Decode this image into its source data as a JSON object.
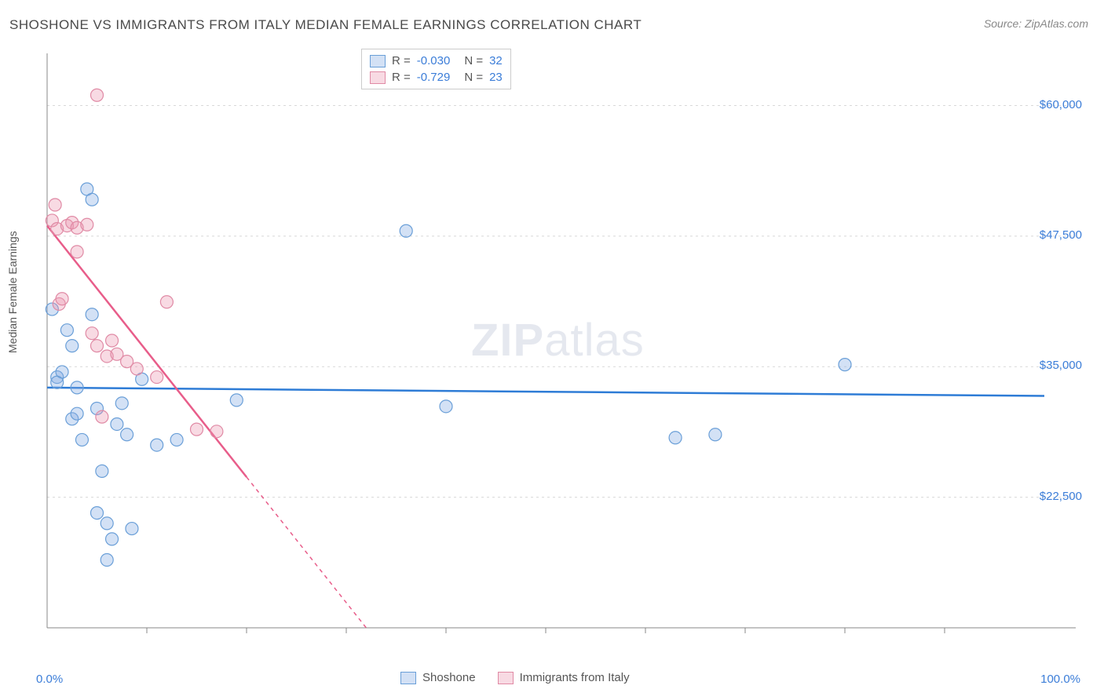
{
  "title": "SHOSHONE VS IMMIGRANTS FROM ITALY MEDIAN FEMALE EARNINGS CORRELATION CHART",
  "source": "Source: ZipAtlas.com",
  "watermark_zip": "ZIP",
  "watermark_atlas": "atlas",
  "y_axis_label": "Median Female Earnings",
  "chart": {
    "type": "scatter",
    "xlim": [
      0,
      100
    ],
    "ylim": [
      10000,
      65000
    ],
    "y_ticks": [
      22500,
      35000,
      47500,
      60000
    ],
    "y_tick_labels": [
      "$22,500",
      "$35,000",
      "$47,500",
      "$60,000"
    ],
    "x_tick_labels": {
      "left": "0.0%",
      "right": "100.0%"
    },
    "x_minor_ticks": [
      10,
      20,
      30,
      40,
      50,
      60,
      70,
      80,
      90
    ],
    "grid_color": "#d8d8d8",
    "axis_color": "#888888",
    "background_color": "#ffffff",
    "series": [
      {
        "name": "Shoshone",
        "R": "-0.030",
        "N": "32",
        "fill": "rgba(130,170,225,0.35)",
        "stroke": "#6a9fd8",
        "trend_color": "#2e7cd6",
        "trend": {
          "x1": 0,
          "y1": 33000,
          "x2": 100,
          "y2": 32200
        },
        "points": [
          {
            "x": 0.5,
            "y": 40500
          },
          {
            "x": 1.0,
            "y": 34000
          },
          {
            "x": 1.0,
            "y": 33500
          },
          {
            "x": 1.5,
            "y": 34500
          },
          {
            "x": 2.0,
            "y": 38500
          },
          {
            "x": 2.5,
            "y": 37000
          },
          {
            "x": 2.5,
            "y": 30000
          },
          {
            "x": 3.0,
            "y": 33000
          },
          {
            "x": 3.0,
            "y": 30500
          },
          {
            "x": 3.5,
            "y": 28000
          },
          {
            "x": 4.0,
            "y": 52000
          },
          {
            "x": 4.5,
            "y": 51000
          },
          {
            "x": 4.5,
            "y": 40000
          },
          {
            "x": 5.0,
            "y": 31000
          },
          {
            "x": 5.0,
            "y": 21000
          },
          {
            "x": 5.5,
            "y": 25000
          },
          {
            "x": 6.0,
            "y": 20000
          },
          {
            "x": 6.0,
            "y": 16500
          },
          {
            "x": 6.5,
            "y": 18500
          },
          {
            "x": 7.0,
            "y": 29500
          },
          {
            "x": 7.5,
            "y": 31500
          },
          {
            "x": 8.0,
            "y": 28500
          },
          {
            "x": 8.5,
            "y": 19500
          },
          {
            "x": 9.5,
            "y": 33800
          },
          {
            "x": 11.0,
            "y": 27500
          },
          {
            "x": 13.0,
            "y": 28000
          },
          {
            "x": 19.0,
            "y": 31800
          },
          {
            "x": 36.0,
            "y": 48000
          },
          {
            "x": 40.0,
            "y": 31200
          },
          {
            "x": 63.0,
            "y": 28200
          },
          {
            "x": 67.0,
            "y": 28500
          },
          {
            "x": 80.0,
            "y": 35200
          }
        ]
      },
      {
        "name": "Immigrants from Italy",
        "R": "-0.729",
        "N": "23",
        "fill": "rgba(235,150,175,0.35)",
        "stroke": "#e08aa5",
        "trend_color": "#e85d8a",
        "trend": {
          "x1": 0,
          "y1": 48500,
          "x2": 32,
          "y2": 10000
        },
        "trend_dash_from_x": 20,
        "points": [
          {
            "x": 0.5,
            "y": 49000
          },
          {
            "x": 0.8,
            "y": 50500
          },
          {
            "x": 1.0,
            "y": 48200
          },
          {
            "x": 1.2,
            "y": 41000
          },
          {
            "x": 1.5,
            "y": 41500
          },
          {
            "x": 2.0,
            "y": 48500
          },
          {
            "x": 2.5,
            "y": 48800
          },
          {
            "x": 3.0,
            "y": 48300
          },
          {
            "x": 3.0,
            "y": 46000
          },
          {
            "x": 4.0,
            "y": 48600
          },
          {
            "x": 4.5,
            "y": 38200
          },
          {
            "x": 5.0,
            "y": 37000
          },
          {
            "x": 5.0,
            "y": 61000
          },
          {
            "x": 5.5,
            "y": 30200
          },
          {
            "x": 6.0,
            "y": 36000
          },
          {
            "x": 6.5,
            "y": 37500
          },
          {
            "x": 7.0,
            "y": 36200
          },
          {
            "x": 8.0,
            "y": 35500
          },
          {
            "x": 9.0,
            "y": 34800
          },
          {
            "x": 11.0,
            "y": 34000
          },
          {
            "x": 12.0,
            "y": 41200
          },
          {
            "x": 15.0,
            "y": 29000
          },
          {
            "x": 17.0,
            "y": 28800
          }
        ]
      }
    ]
  },
  "legend_bottom": {
    "series1_label": "Shoshone",
    "series2_label": "Immigrants from Italy"
  }
}
